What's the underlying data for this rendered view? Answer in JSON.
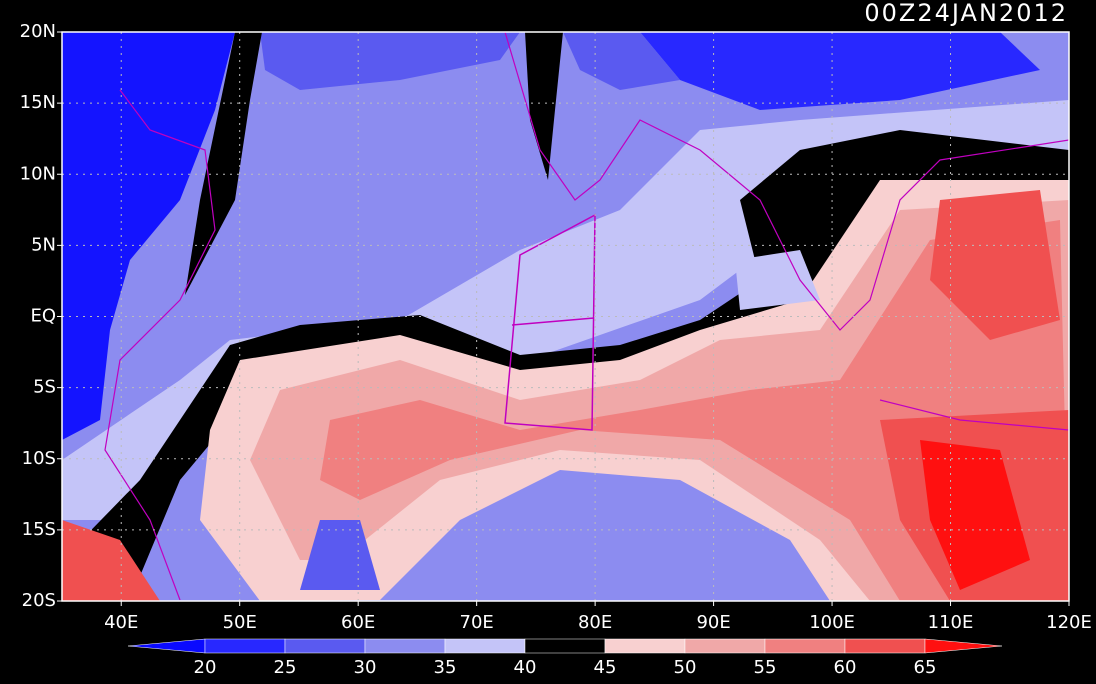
{
  "map": {
    "title": "00Z24JAN2012",
    "lat_labels": [
      "20N",
      "15N",
      "10N",
      "5N",
      "EQ",
      "5S",
      "10S",
      "15S",
      "20S"
    ],
    "lon_labels": [
      "40E",
      "50E",
      "60E",
      "70E",
      "80E",
      "90E",
      "100E",
      "110E",
      "120E"
    ]
  },
  "colorbar": {
    "levels": [
      20,
      25,
      30,
      35,
      40,
      45,
      50,
      55,
      60,
      65
    ],
    "colors": [
      "#0a0aff",
      "#2828ff",
      "#5a5af0",
      "#8c8cf0",
      "#c4c4f8",
      "#000000",
      "#f8d0d0",
      "#f0a8a8",
      "#f08080",
      "#f05050",
      "#ff1010"
    ]
  }
}
